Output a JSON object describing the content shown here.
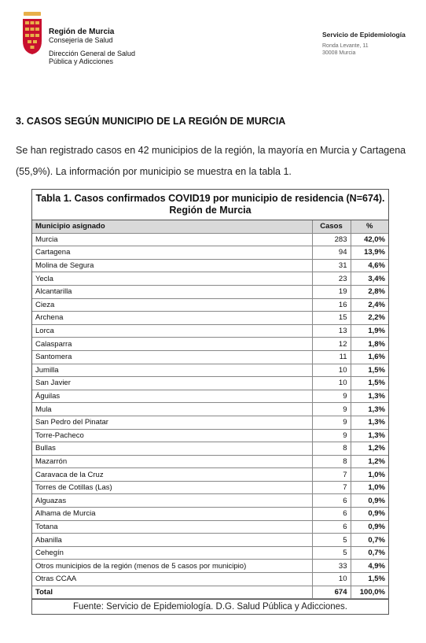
{
  "header": {
    "org_name": "Región de Murcia",
    "org_dept": "Consejería de Salud",
    "org_directorate_line1": "Dirección General de Salud",
    "org_directorate_line2": "Pública y Adicciones",
    "service_name": "Servicio de Epidemiología",
    "service_address1": "Ronda Levante, 11",
    "service_address2": "30008 Murcia"
  },
  "section": {
    "title": "3. CASOS SEGÚN MUNICIPIO DE LA REGIÓN DE MURCIA",
    "paragraph": "Se han registrado casos en 42 municipios de la región, la mayoría en Murcia y Cartagena (55,9%). La información por municipio se muestra en la tabla 1."
  },
  "table": {
    "caption_line1": "Tabla 1. Casos confirmados COVID19 por municipio de residencia (N=674).",
    "caption_line2": "Región de Murcia",
    "headers": [
      "Municipio asignado",
      "Casos",
      "%"
    ],
    "rows": [
      [
        "Murcia",
        "283",
        "42,0%"
      ],
      [
        "Cartagena",
        "94",
        "13,9%"
      ],
      [
        "Molina de Segura",
        "31",
        "4,6%"
      ],
      [
        "Yecla",
        "23",
        "3,4%"
      ],
      [
        "Alcantarilla",
        "19",
        "2,8%"
      ],
      [
        "Cieza",
        "16",
        "2,4%"
      ],
      [
        "Archena",
        "15",
        "2,2%"
      ],
      [
        "Lorca",
        "13",
        "1,9%"
      ],
      [
        "Calasparra",
        "12",
        "1,8%"
      ],
      [
        "Santomera",
        "11",
        "1,6%"
      ],
      [
        "Jumilla",
        "10",
        "1,5%"
      ],
      [
        "San Javier",
        "10",
        "1,5%"
      ],
      [
        "Águilas",
        "9",
        "1,3%"
      ],
      [
        "Mula",
        "9",
        "1,3%"
      ],
      [
        "San Pedro del Pinatar",
        "9",
        "1,3%"
      ],
      [
        "Torre-Pacheco",
        "9",
        "1,3%"
      ],
      [
        "Bullas",
        "8",
        "1,2%"
      ],
      [
        "Mazarrón",
        "8",
        "1,2%"
      ],
      [
        "Caravaca de la Cruz",
        "7",
        "1,0%"
      ],
      [
        "Torres de Cotillas (Las)",
        "7",
        "1,0%"
      ],
      [
        "Alguazas",
        "6",
        "0,9%"
      ],
      [
        "Alhama de Murcia",
        "6",
        "0,9%"
      ],
      [
        "Totana",
        "6",
        "0,9%"
      ],
      [
        "Abanilla",
        "5",
        "0,7%"
      ],
      [
        "Cehegín",
        "5",
        "0,7%"
      ],
      [
        "Otros municipios de la región (menos de 5 casos por municipio)",
        "33",
        "4,9%"
      ],
      [
        "Otras CCAA",
        "10",
        "1,5%"
      ]
    ],
    "total": [
      "Total",
      "674",
      "100,0%"
    ],
    "source": "Fuente: Servicio de Epidemiología. D.G. Salud Pública y Adicciones."
  },
  "colors": {
    "logo_red": "#c8102e",
    "logo_gold": "#e8b04a",
    "header_gray": "#d9d9d9"
  }
}
